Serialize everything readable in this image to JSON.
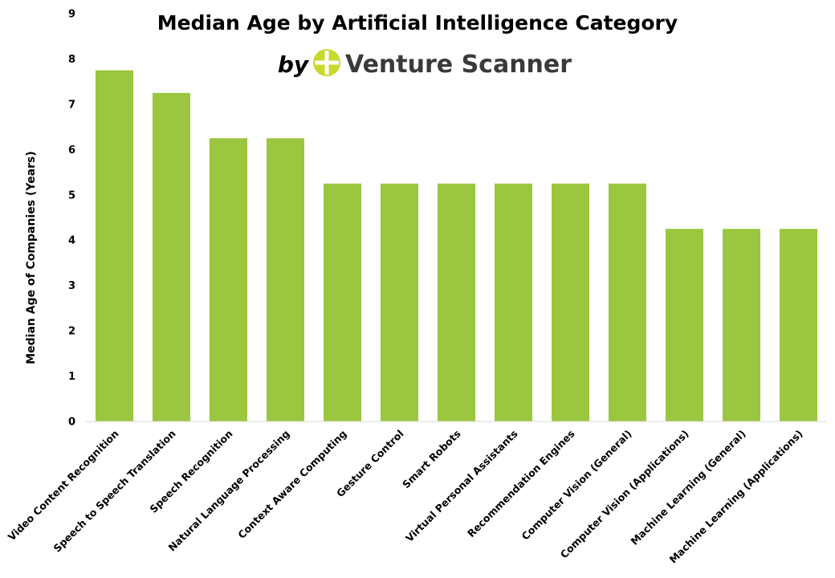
{
  "chart_data": {
    "type": "bar",
    "title": "Median Age by Artificial Intelligence Category",
    "subtitle_prefix": "by",
    "brand": "Venture Scanner",
    "xlabel": "",
    "ylabel": "Median Age of Companies (Years)",
    "ylim": [
      0,
      9
    ],
    "yticks": [
      "0",
      "1",
      "2",
      "3",
      "4",
      "5",
      "6",
      "7",
      "8",
      "9"
    ],
    "grid": false,
    "bar_color": "#9bc63f",
    "logo_color": "#c8d92e",
    "categories": [
      "Video Content Recognition",
      "Speech to Speech Translation",
      "Speech Recognition",
      "Natural Language Processing",
      "Context Aware Computing",
      "Gesture Control",
      "Smart Robots",
      "Virtual Personal Assistants",
      "Recommendation Engines",
      "Computer Vision (General)",
      "Computer Vision (Applications)",
      "Machine Learning (General)",
      "Machine Learning (Applications)"
    ],
    "values": [
      7.75,
      7.25,
      6.25,
      6.25,
      5.25,
      5.25,
      5.25,
      5.25,
      5.25,
      5.25,
      4.25,
      4.25,
      4.25
    ]
  }
}
